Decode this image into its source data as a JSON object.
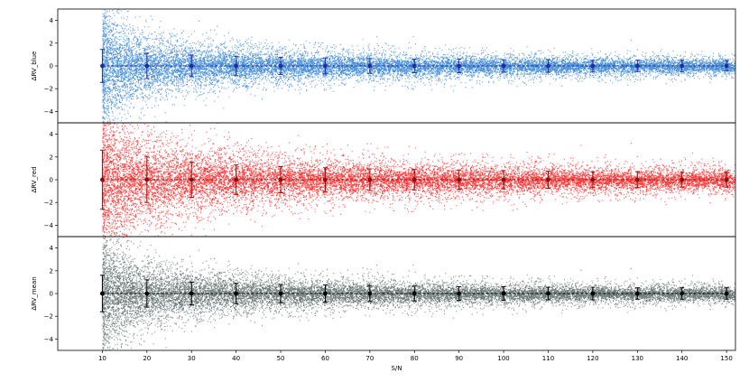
{
  "chart_data": [
    {
      "type": "scatter",
      "ylabel": "ΔRV_blue",
      "color_points": "#4a90d9",
      "color_markers": "#1f2e9e",
      "ylim": [
        -5,
        5
      ],
      "yticks": [
        "4",
        "2",
        "0",
        "−2",
        "−4"
      ],
      "series": [
        {
          "x": [
            10,
            20,
            30,
            40,
            50,
            60,
            70,
            80,
            90,
            100,
            110,
            120,
            130,
            140,
            150
          ],
          "y": [
            0,
            0,
            0,
            0,
            0,
            0,
            0,
            0,
            0,
            0,
            0,
            0,
            0,
            0,
            0
          ],
          "yerr": [
            1.45,
            1.1,
            0.95,
            0.85,
            0.75,
            0.7,
            0.65,
            0.6,
            0.6,
            0.55,
            0.55,
            0.5,
            0.5,
            0.5,
            0.45
          ]
        }
      ],
      "scatter_spread_note": ""
    },
    {
      "type": "scatter",
      "ylabel": "ΔRV_red",
      "color_points": "#ff3b3b",
      "color_markers": "#8b1010",
      "ylim": [
        -5,
        5
      ],
      "yticks": [
        "4",
        "2",
        "0",
        "−2",
        "−4"
      ],
      "series": [
        {
          "x": [
            10,
            20,
            30,
            40,
            50,
            60,
            70,
            80,
            90,
            100,
            110,
            120,
            130,
            140,
            150
          ],
          "y": [
            0,
            0,
            0,
            0,
            0,
            0,
            0,
            0,
            0,
            0,
            0,
            0,
            0,
            0,
            0
          ],
          "yerr": [
            2.6,
            2.0,
            1.55,
            1.3,
            1.15,
            1.05,
            0.95,
            0.9,
            0.85,
            0.8,
            0.75,
            0.7,
            0.7,
            0.65,
            0.65
          ]
        }
      ]
    },
    {
      "type": "scatter",
      "ylabel": "ΔRV_mean",
      "color_points": "#6e7b7b",
      "color_markers": "#000000",
      "ylim": [
        -5,
        5
      ],
      "yticks": [
        "4",
        "2",
        "0",
        "−2",
        "−4"
      ],
      "series": [
        {
          "x": [
            10,
            20,
            30,
            40,
            50,
            60,
            70,
            80,
            90,
            100,
            110,
            120,
            130,
            140,
            150
          ],
          "y": [
            0,
            0,
            0,
            0,
            0,
            0,
            0,
            0,
            0,
            0,
            0,
            0,
            0,
            0,
            0
          ],
          "yerr": [
            1.6,
            1.2,
            1.0,
            0.9,
            0.8,
            0.75,
            0.7,
            0.65,
            0.6,
            0.6,
            0.55,
            0.55,
            0.5,
            0.5,
            0.5
          ]
        }
      ]
    }
  ],
  "xaxis": {
    "label": "S/N",
    "xlim": [
      0,
      152
    ],
    "ticks": [
      "10",
      "20",
      "30",
      "40",
      "50",
      "60",
      "70",
      "80",
      "90",
      "100",
      "110",
      "120",
      "130",
      "140",
      "150"
    ]
  }
}
